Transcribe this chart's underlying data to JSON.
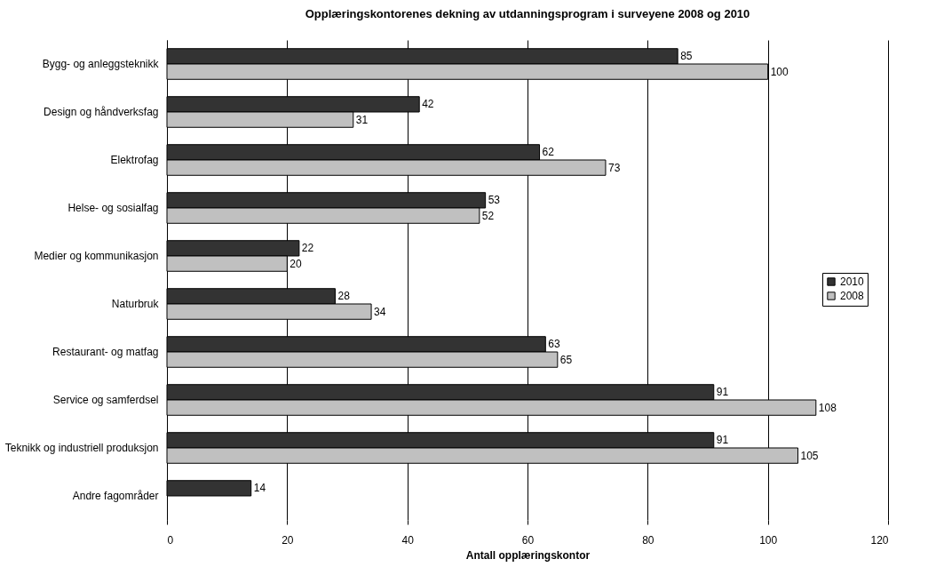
{
  "chart_data": {
    "type": "bar",
    "orientation": "horizontal",
    "title": "Opplæringskontorenes dekning av utdanningsprogram i surveyene 2008 og 2010",
    "xlabel": "Antall opplæringskontor",
    "categories": [
      "Bygg- og anleggsteknikk",
      "Design og håndverksfag",
      "Elektrofag",
      "Helse- og sosialfag",
      "Medier og kommunikasjon",
      "Naturbruk",
      "Restaurant- og matfag",
      "Service og samferdsel",
      "Teknikk og industriell produksjon",
      "Andre fagområder"
    ],
    "series": [
      {
        "name": "2010",
        "color": "#333333",
        "values": [
          85,
          42,
          62,
          53,
          22,
          28,
          63,
          91,
          91,
          14
        ]
      },
      {
        "name": "2008",
        "color": "#c0c0c0",
        "values": [
          100,
          31,
          73,
          52,
          20,
          34,
          65,
          108,
          105,
          null
        ]
      }
    ],
    "xlim": [
      0,
      120
    ],
    "xticks": [
      0,
      20,
      40,
      60,
      80,
      100,
      120
    ],
    "grid": "x",
    "legend": "right",
    "data_labels": true
  }
}
